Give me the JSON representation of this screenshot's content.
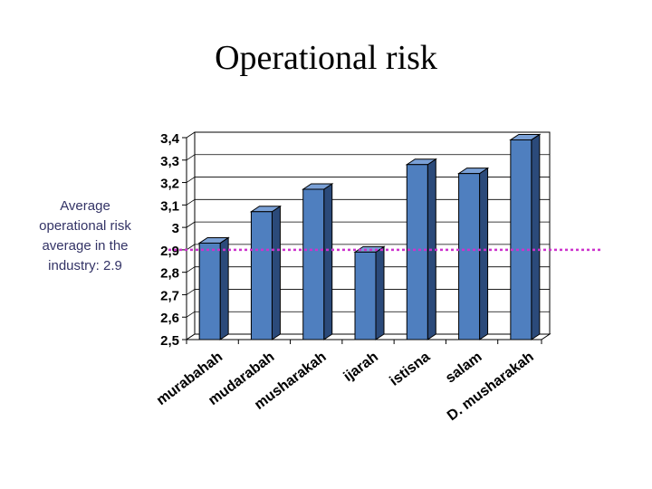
{
  "title": "Operational risk",
  "note": {
    "lines": [
      "Average",
      "operational risk",
      "average in the",
      "industry: 2.9"
    ]
  },
  "chart_data": {
    "type": "bar",
    "title": "Operational risk",
    "categories": [
      "murabahah",
      "mudarabah",
      "musharakah",
      "ijarah",
      "istisna",
      "salam",
      "D. musharakah"
    ],
    "values": [
      2.93,
      3.07,
      3.17,
      2.89,
      3.28,
      3.24,
      3.39
    ],
    "ylim": [
      2.5,
      3.4
    ],
    "yticks": [
      "2,5",
      "2,6",
      "2,7",
      "2,8",
      "2,9",
      "3",
      "3,1",
      "3,2",
      "3,3",
      "3,4"
    ],
    "grid": true,
    "reference_line": {
      "value": 2.9,
      "color": "#cc33cc"
    },
    "colors": {
      "bar_front": "#4f7fbf",
      "bar_side": "#2b4a7a",
      "bar_top": "#7aa0d6",
      "outline": "#000000"
    }
  }
}
